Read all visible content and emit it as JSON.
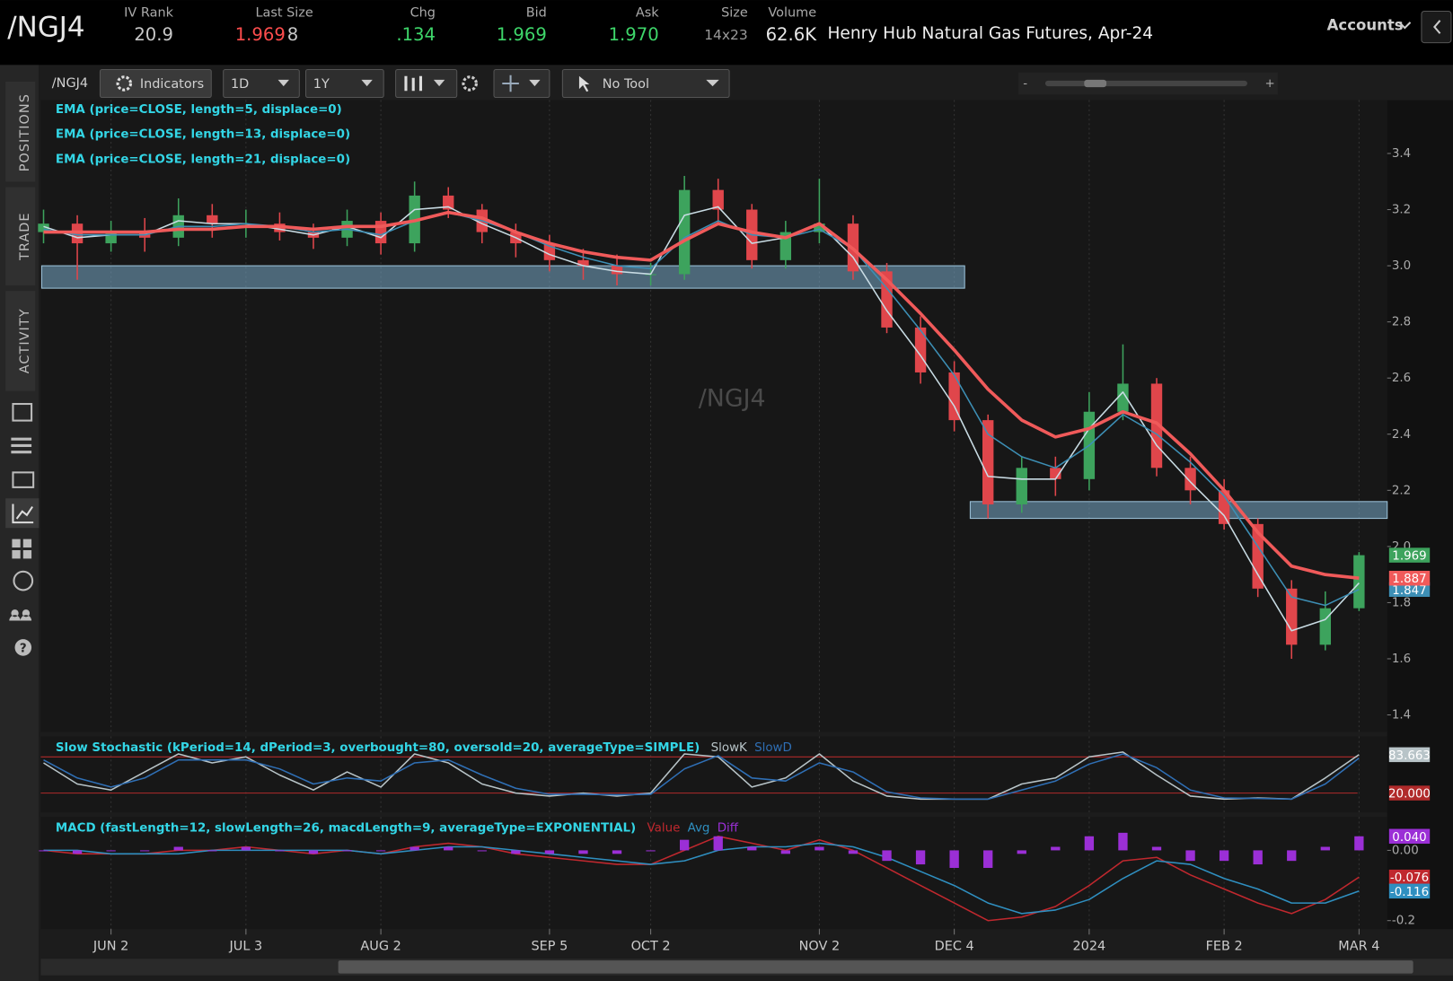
{
  "header": {
    "symbol": "/NGJ4",
    "fields": [
      {
        "label": "IV Rank",
        "value": "20.9"
      },
      {
        "label": "Last Size",
        "value": "1.969",
        "extra": "8"
      },
      {
        "label": "Chg",
        "value": ".134"
      },
      {
        "label": "Bid",
        "value": "1.969"
      },
      {
        "label": "Ask",
        "value": "1.970"
      },
      {
        "label": "Size",
        "value": "14x23"
      },
      {
        "label": "Volume",
        "value": "62.6K"
      }
    ],
    "description": "Henry Hub Natural Gas Futures, Apr-24",
    "menu": "Accounts"
  },
  "toolbar": {
    "symbol": "/NGJ4",
    "indicators": "Indicators",
    "aggregation": "1D",
    "period": "1Y",
    "tool": "No Tool",
    "zoom_out": "-",
    "zoom_in": "+"
  },
  "sidebar": {
    "tabs": [
      "POSITIONS",
      "TRADE",
      "ACTIVITY"
    ]
  },
  "chart_data": [
    {
      "type": "candlestick",
      "watermark": "/NGJ4",
      "categories": [
        null,
        null,
        "JUN 2",
        null,
        null,
        null,
        "JUL 3",
        null,
        null,
        null,
        "AUG 2",
        null,
        null,
        null,
        null,
        "SEP 5",
        null,
        null,
        "OCT 2",
        null,
        null,
        null,
        null,
        "NOV 2",
        null,
        null,
        null,
        "DEC 4",
        null,
        null,
        null,
        "2024",
        null,
        null,
        null,
        "FEB 2",
        null,
        null,
        null,
        "MAR 4"
      ],
      "open": [
        3.12,
        3.15,
        3.08,
        3.12,
        3.1,
        3.18,
        3.15,
        3.15,
        3.12,
        3.1,
        3.16,
        3.08,
        3.25,
        3.2,
        3.12,
        3.08,
        3.02,
        3.0,
        2.97,
        2.97,
        3.27,
        3.2,
        3.02,
        3.12,
        3.15,
        2.98,
        2.78,
        2.62,
        2.45,
        2.15,
        2.28,
        2.24,
        2.48,
        2.58,
        2.28,
        2.2,
        2.08,
        1.85,
        1.65,
        1.78
      ],
      "high": [
        3.2,
        3.18,
        3.16,
        3.17,
        3.24,
        3.22,
        3.2,
        3.19,
        3.15,
        3.2,
        3.19,
        3.3,
        3.28,
        3.22,
        3.15,
        3.11,
        3.06,
        3.04,
        3.01,
        3.32,
        3.31,
        3.22,
        3.16,
        3.31,
        3.18,
        3.01,
        2.82,
        2.66,
        2.47,
        2.32,
        2.32,
        2.55,
        2.72,
        2.6,
        2.32,
        2.24,
        2.1,
        1.88,
        1.84,
        1.98
      ],
      "low": [
        3.08,
        2.95,
        3.05,
        3.05,
        3.07,
        3.1,
        3.1,
        3.09,
        3.06,
        3.07,
        3.04,
        3.05,
        3.17,
        3.08,
        3.03,
        2.98,
        2.95,
        2.93,
        2.93,
        2.95,
        3.15,
        2.99,
        2.99,
        3.08,
        2.95,
        2.76,
        2.58,
        2.41,
        2.1,
        2.12,
        2.18,
        2.2,
        2.45,
        2.25,
        2.15,
        2.06,
        1.82,
        1.6,
        1.63,
        1.77
      ],
      "close": [
        3.15,
        3.08,
        3.12,
        3.1,
        3.18,
        3.15,
        3.15,
        3.12,
        3.1,
        3.16,
        3.08,
        3.25,
        3.2,
        3.12,
        3.08,
        3.02,
        3.0,
        2.97,
        2.97,
        3.27,
        3.2,
        3.02,
        3.12,
        3.15,
        2.98,
        2.78,
        2.62,
        2.45,
        2.15,
        2.28,
        2.24,
        2.48,
        2.58,
        2.28,
        2.2,
        2.08,
        1.85,
        1.65,
        1.78,
        1.969
      ],
      "up_color": "#3da35d",
      "down_color": "#e0464b",
      "label_color": "#33d6e6",
      "series": [
        {
          "name": "EMA (price=CLOSE, length=5, displace=0)",
          "color": "#c9dce4",
          "values": [
            3.14,
            3.1,
            3.11,
            3.11,
            3.16,
            3.15,
            3.15,
            3.13,
            3.11,
            3.14,
            3.1,
            3.2,
            3.21,
            3.15,
            3.1,
            3.04,
            3.0,
            2.98,
            2.97,
            3.18,
            3.21,
            3.08,
            3.1,
            3.15,
            3.03,
            2.84,
            2.68,
            2.5,
            2.25,
            2.24,
            2.24,
            2.42,
            2.55,
            2.36,
            2.23,
            2.11,
            1.9,
            1.7,
            1.74,
            1.87
          ]
        },
        {
          "name": "EMA (price=CLOSE, length=13, displace=0)",
          "color": "#3d8fb5",
          "badge": true,
          "values": [
            3.13,
            3.11,
            3.11,
            3.11,
            3.14,
            3.14,
            3.15,
            3.14,
            3.12,
            3.13,
            3.11,
            3.16,
            3.19,
            3.16,
            3.12,
            3.07,
            3.03,
            3.0,
            2.99,
            3.1,
            3.16,
            3.11,
            3.1,
            3.13,
            3.06,
            2.92,
            2.77,
            2.61,
            2.4,
            2.32,
            2.28,
            2.36,
            2.47,
            2.4,
            2.3,
            2.18,
            2.0,
            1.82,
            1.79,
            1.847
          ]
        },
        {
          "name": "EMA (price=CLOSE, length=21, displace=0)",
          "color": "#f05a5a",
          "badge": true,
          "values": [
            3.12,
            3.12,
            3.12,
            3.12,
            3.13,
            3.13,
            3.14,
            3.14,
            3.13,
            3.14,
            3.14,
            3.16,
            3.19,
            3.17,
            3.12,
            3.08,
            3.05,
            3.03,
            3.02,
            3.09,
            3.15,
            3.12,
            3.1,
            3.15,
            3.06,
            2.95,
            2.83,
            2.7,
            2.56,
            2.45,
            2.39,
            2.42,
            2.48,
            2.44,
            2.33,
            2.2,
            2.05,
            1.93,
            1.9,
            1.887
          ]
        }
      ],
      "zones": [
        {
          "low": 2.92,
          "high": 3.0
        },
        {
          "low": 2.1,
          "high": 2.16
        }
      ],
      "ylim": [
        1.34,
        3.59
      ],
      "yticks": [
        1.4,
        1.6,
        1.8,
        {
          "value": 2,
          "label": "2.0"
        },
        2.2,
        2.4,
        2.6,
        2.8,
        {
          "value": 3,
          "label": "3.0"
        },
        3.2,
        3.4
      ],
      "grid": true
    },
    {
      "type": "line",
      "title": "Slow Stochastic (kPeriod=14, dPeriod=3, overbought=80, oversold=20, averageType=SIMPLE)",
      "label_color": "#33d6e6",
      "series": [
        {
          "name": "SlowK",
          "color": "#b8c4c8",
          "badge": true,
          "values": [
            70,
            35,
            25,
            55,
            85,
            70,
            80,
            50,
            25,
            55,
            30,
            85,
            70,
            35,
            20,
            15,
            20,
            15,
            20,
            85,
            80,
            30,
            45,
            85,
            40,
            15,
            10,
            10,
            10,
            35,
            45,
            80,
            88,
            50,
            15,
            10,
            12,
            10,
            45,
            83.663
          ]
        },
        {
          "name": "SlowD",
          "color": "#2f6fb5",
          "values": [
            75,
            45,
            30,
            45,
            75,
            75,
            75,
            60,
            35,
            45,
            40,
            70,
            75,
            50,
            28,
            18,
            18,
            17,
            18,
            60,
            82,
            45,
            40,
            70,
            55,
            22,
            12,
            10,
            10,
            25,
            40,
            68,
            85,
            62,
            25,
            12,
            11,
            10,
            35,
            78
          ]
        }
      ],
      "levels": [
        80,
        {
          "value": 20,
          "label": "20.000"
        }
      ],
      "level_color": "#b02a2a",
      "ylim": [
        -12,
        114
      ],
      "yticks": [],
      "grid": true
    },
    {
      "type": "line",
      "title": "MACD (fastLength=12, slowLength=26, macdLength=9, averageType=EXPONENTIAL)",
      "label_color": "#33d6e6",
      "series": [
        {
          "name": "Value",
          "color": "#c0282e",
          "badge": true,
          "values": [
            0.0,
            -0.01,
            -0.01,
            -0.01,
            0.0,
            0.0,
            0.01,
            0.0,
            -0.01,
            0.0,
            -0.01,
            0.01,
            0.02,
            0.01,
            -0.01,
            -0.02,
            -0.03,
            -0.04,
            -0.04,
            0.0,
            0.04,
            0.02,
            0.0,
            0.03,
            0.0,
            -0.05,
            -0.1,
            -0.15,
            -0.2,
            -0.19,
            -0.16,
            -0.1,
            -0.03,
            -0.02,
            -0.07,
            -0.11,
            -0.15,
            -0.18,
            -0.14,
            -0.076
          ]
        },
        {
          "name": "Avg",
          "color": "#2f8fc0",
          "badge": true,
          "values": [
            0.0,
            0.0,
            -0.01,
            -0.01,
            -0.01,
            0.0,
            0.0,
            0.0,
            0.0,
            0.0,
            -0.01,
            0.0,
            0.01,
            0.01,
            0.0,
            -0.01,
            -0.02,
            -0.03,
            -0.04,
            -0.03,
            0.0,
            0.01,
            0.01,
            0.02,
            0.01,
            -0.02,
            -0.06,
            -0.1,
            -0.15,
            -0.18,
            -0.17,
            -0.14,
            -0.08,
            -0.03,
            -0.04,
            -0.08,
            -0.11,
            -0.15,
            -0.15,
            -0.116
          ]
        },
        {
          "name": "Diff",
          "color": "#9b2fd6",
          "style": "histogram",
          "badge": true,
          "values": [
            0,
            -0.01,
            0,
            0,
            0.01,
            0,
            0.01,
            0,
            -0.01,
            0,
            0,
            0.01,
            0.01,
            0,
            -0.01,
            -0.01,
            -0.01,
            -0.01,
            0,
            0.03,
            0.04,
            0.01,
            -0.01,
            0.01,
            -0.01,
            -0.03,
            -0.04,
            -0.05,
            -0.05,
            -0.01,
            0.01,
            0.04,
            0.05,
            0.01,
            -0.03,
            -0.03,
            -0.04,
            -0.03,
            0.01,
            0.04
          ],
          "value_labels": [
            null,
            null,
            null,
            null,
            null,
            null,
            null,
            null,
            null,
            null,
            null,
            null,
            null,
            null,
            null,
            null,
            null,
            null,
            null,
            null,
            null,
            null,
            null,
            null,
            null,
            null,
            null,
            null,
            null,
            null,
            null,
            null,
            null,
            null,
            null,
            null,
            null,
            null,
            null,
            "0.040"
          ]
        }
      ],
      "ylim": [
        -0.224,
        0.095
      ],
      "yticks": [
        {
          "value": 0,
          "label": "0.00"
        },
        -0.2
      ],
      "grid": true
    }
  ]
}
